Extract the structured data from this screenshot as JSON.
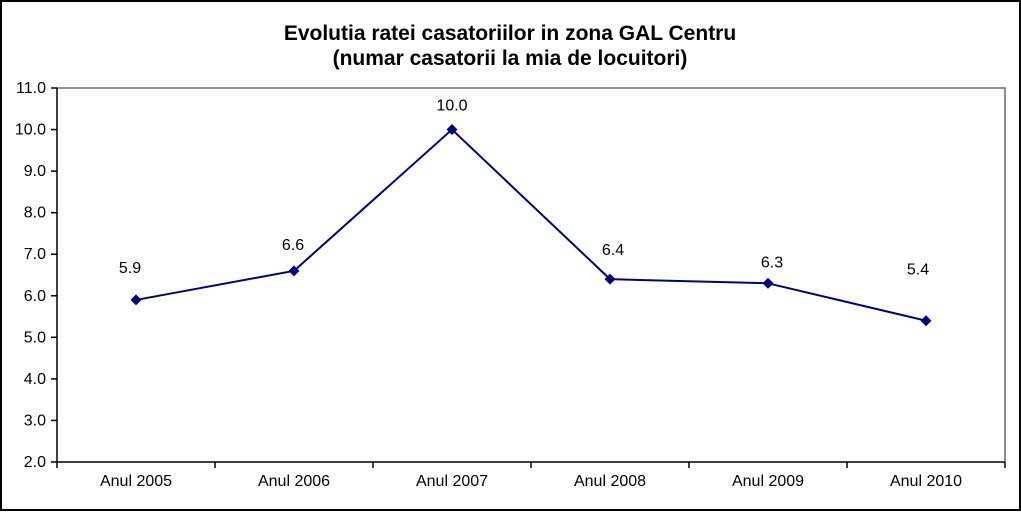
{
  "window": {
    "background": "#ffffff",
    "border_color": "#000000"
  },
  "chart_data": {
    "type": "line",
    "title": "Evolutia ratei casatoriilor in zona GAL Centru",
    "subtitle": "(numar casatorii la mia de locuitori)",
    "categories": [
      "Anul 2005",
      "Anul 2006",
      "Anul 2007",
      "Anul 2008",
      "Anul 2009",
      "Anul 2010"
    ],
    "values": [
      5.9,
      6.6,
      10.0,
      6.4,
      6.3,
      5.4
    ],
    "data_labels": [
      "5.9",
      "6.6",
      "10.0",
      "6.4",
      "6.3",
      "5.4"
    ],
    "xlabel": "",
    "ylabel": "",
    "ylim": [
      2.0,
      11.0
    ],
    "ytick_step": 1.0,
    "ytick_labels": [
      "2.0",
      "3.0",
      "4.0",
      "5.0",
      "6.0",
      "7.0",
      "8.0",
      "9.0",
      "10.0",
      "11.0"
    ],
    "grid": false,
    "legend": "none",
    "marker_shape": "diamond",
    "colors": {
      "line": "#000080",
      "marker": "#000080",
      "axis": "#000000",
      "plot_border": "#808080",
      "text": "#000000",
      "frame": "#000000",
      "background": "#ffffff"
    },
    "label_offsets": {
      "dx": [
        -6,
        -1,
        0,
        3,
        4,
        -8
      ],
      "dy": [
        -27,
        -21,
        -19,
        -24,
        -16,
        -46
      ]
    }
  }
}
